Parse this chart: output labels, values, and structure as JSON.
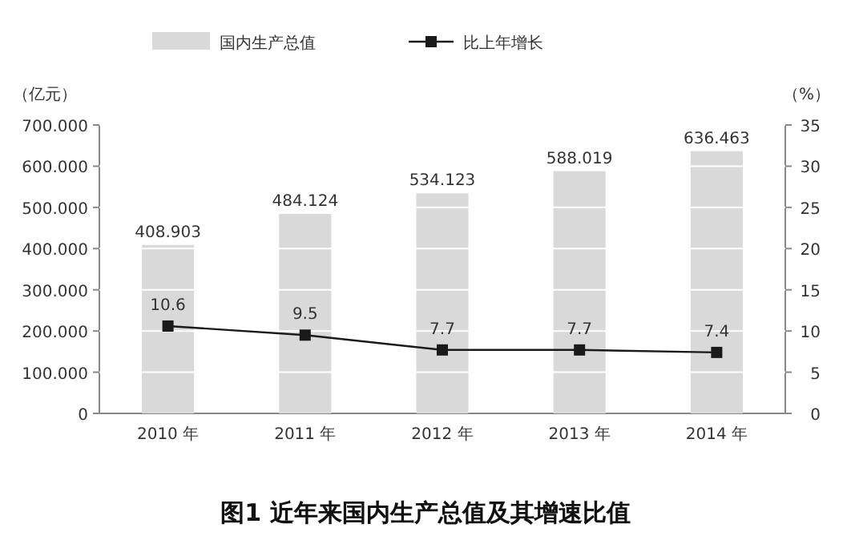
{
  "chart_data": {
    "type": "bar",
    "title": "图1  近年来国内生产总值及其增速比值",
    "ylabel": "（亿元）",
    "y2label": "（%）",
    "categories": [
      "2010 年",
      "2011 年",
      "2012 年",
      "2013 年",
      "2014 年"
    ],
    "series": [
      {
        "name": "国内生产总值",
        "color": "#d9d9d9",
        "values": [
          408.903,
          484.124,
          534.123,
          588.019,
          636.463
        ],
        "value_labels": [
          "408.903",
          "484.124",
          "534.123",
          "588.019",
          "636.463"
        ]
      },
      {
        "name": "比上年增长",
        "type": "line",
        "axis": "y2",
        "color": "#1a1a1a",
        "marker": "square",
        "values": [
          10.6,
          9.5,
          7.7,
          7.7,
          7.4
        ],
        "value_labels": [
          "10.6",
          "9.5",
          "7.7",
          "7.7",
          "7.4"
        ]
      }
    ],
    "ylim": [
      0,
      700
    ],
    "yticks": [
      0,
      {
        "value": 100,
        "label": "100.000"
      },
      {
        "value": 200,
        "label": "200.000"
      },
      {
        "value": 300,
        "label": "300.000"
      },
      {
        "value": 400,
        "label": "400.000"
      },
      {
        "value": 500,
        "label": "500.000"
      },
      {
        "value": 600,
        "label": "600.000"
      },
      {
        "value": 700,
        "label": "700.000"
      }
    ],
    "y2lim": [
      0,
      35
    ],
    "y2ticks": [
      0,
      5,
      10,
      15,
      20,
      25,
      30,
      35
    ],
    "grid": "y",
    "legend": "top"
  }
}
